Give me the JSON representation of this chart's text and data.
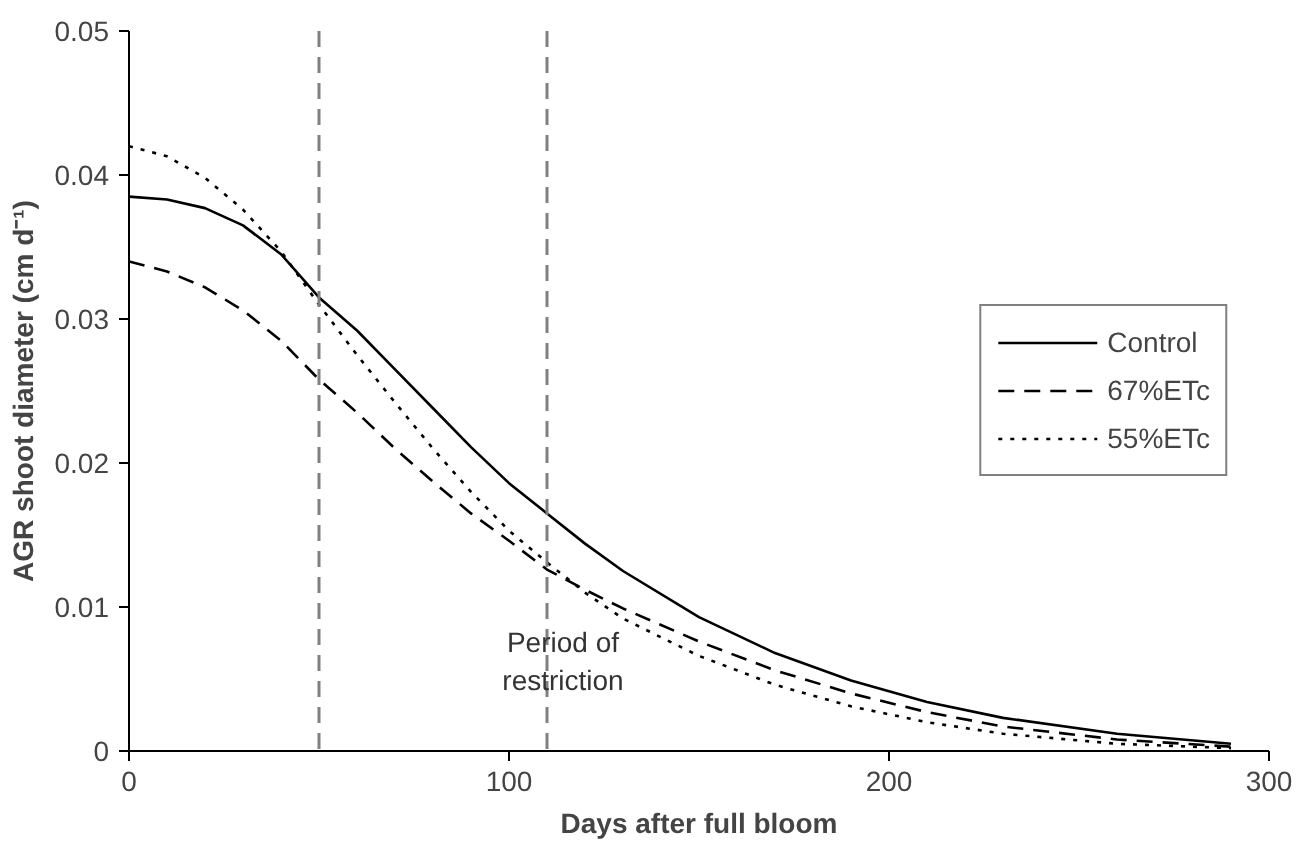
{
  "chart_data": {
    "type": "line",
    "xlabel": "Days after full bloom",
    "ylabel": "AGR shoot diameter (cm d⁻¹)",
    "xlim": [
      0,
      300
    ],
    "ylim": [
      0,
      0.05
    ],
    "xticks": [
      0,
      100,
      200,
      300
    ],
    "yticks": [
      0,
      0.01,
      0.02,
      0.03,
      0.04,
      0.05
    ],
    "grid": false,
    "legend": "right",
    "x": [
      0,
      10,
      20,
      30,
      40,
      50,
      60,
      70,
      80,
      90,
      100,
      110,
      120,
      130,
      150,
      170,
      190,
      210,
      230,
      260,
      290
    ],
    "series": [
      {
        "name": "Control",
        "color": "#000000",
        "line_style": "solid",
        "values": [
          0.0385,
          0.0383,
          0.0377,
          0.0365,
          0.0345,
          0.0315,
          0.0292,
          0.0265,
          0.0238,
          0.0211,
          0.0186,
          0.0165,
          0.0144,
          0.0125,
          0.0093,
          0.0068,
          0.0049,
          0.0034,
          0.0023,
          0.0012,
          0.0005
        ]
      },
      {
        "name": "67%ETc",
        "color": "#000000",
        "line_style": "dashed",
        "values": [
          0.034,
          0.0333,
          0.0322,
          0.0306,
          0.0285,
          0.0258,
          0.0235,
          0.021,
          0.0187,
          0.0165,
          0.0146,
          0.0126,
          0.0112,
          0.0099,
          0.0076,
          0.0056,
          0.004,
          0.0027,
          0.0017,
          0.0008,
          0.0003
        ]
      },
      {
        "name": "55%ETc",
        "color": "#000000",
        "line_style": "dotted",
        "values": [
          0.042,
          0.0413,
          0.0398,
          0.0376,
          0.0347,
          0.031,
          0.0275,
          0.0242,
          0.021,
          0.018,
          0.0153,
          0.0131,
          0.011,
          0.0092,
          0.0066,
          0.0046,
          0.0031,
          0.002,
          0.0012,
          0.0005,
          0.0002
        ]
      }
    ],
    "ref_lines": [
      {
        "axis": "x",
        "value": 50,
        "color": "#808080",
        "line_style": "dashed"
      },
      {
        "axis": "x",
        "value": 110,
        "color": "#808080",
        "line_style": "dashed"
      }
    ],
    "annotations": [
      "Period of\nrestriction"
    ]
  }
}
